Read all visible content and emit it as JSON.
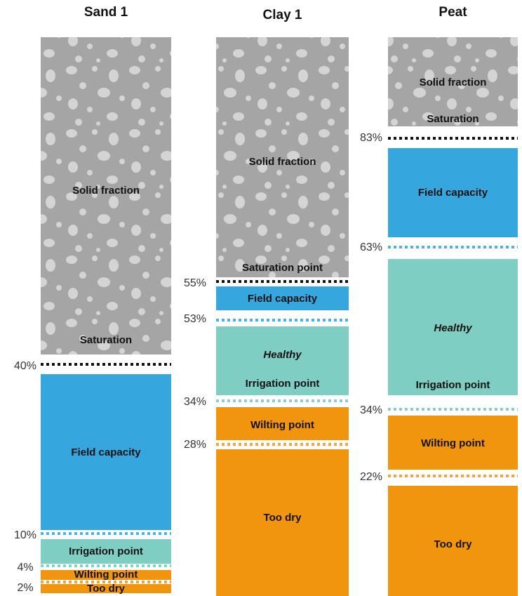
{
  "columns": [
    {
      "title": "Sand 1",
      "zones": [
        {
          "labels": [
            "Solid fraction",
            "Saturation"
          ]
        },
        {
          "labels": [
            "Field capacity"
          ]
        },
        {
          "labels": [
            "Irrigation point"
          ]
        },
        {
          "labels": [
            "Wilting point"
          ]
        },
        {
          "labels": [
            "Too dry"
          ]
        }
      ],
      "thresholds": [
        "40%",
        "10%",
        "4%",
        "2%"
      ]
    },
    {
      "title": "Clay 1",
      "zones": [
        {
          "labels": [
            "Solid fraction",
            "Saturation point"
          ]
        },
        {
          "labels": [
            "Field capacity"
          ]
        },
        {
          "labels": [
            "Healthy",
            "Irrigation point"
          ]
        },
        {
          "labels": [
            "Wilting point"
          ]
        },
        {
          "labels": [
            "Too dry"
          ]
        }
      ],
      "thresholds": [
        "55%",
        "53%",
        "34%",
        "28%"
      ]
    },
    {
      "title": "Peat",
      "zones": [
        {
          "labels": [
            "Solid fraction",
            "Saturation"
          ]
        },
        {
          "labels": [
            "Field capacity"
          ]
        },
        {
          "labels": [
            "Healthy",
            "Irrigation point"
          ]
        },
        {
          "labels": [
            "Wilting point"
          ]
        },
        {
          "labels": [
            "Too dry"
          ]
        }
      ],
      "thresholds": [
        "83%",
        "63%",
        "34%",
        "22%"
      ]
    }
  ]
}
